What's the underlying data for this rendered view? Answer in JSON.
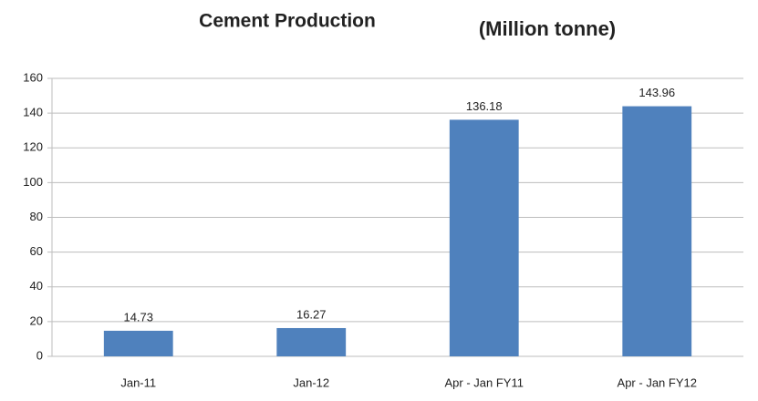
{
  "chart_data": {
    "type": "bar",
    "title": "Cement Production",
    "subtitle": "(Million tonne)",
    "categories": [
      "Jan-11",
      "Jan-12",
      "Apr - Jan FY11",
      "Apr - Jan FY12"
    ],
    "values": [
      14.73,
      16.27,
      136.18,
      143.96
    ],
    "color": "#4f81bd",
    "ylim": [
      0,
      160
    ],
    "yticks": [
      0,
      20,
      40,
      60,
      80,
      100,
      120,
      140,
      160
    ],
    "grid": true
  }
}
